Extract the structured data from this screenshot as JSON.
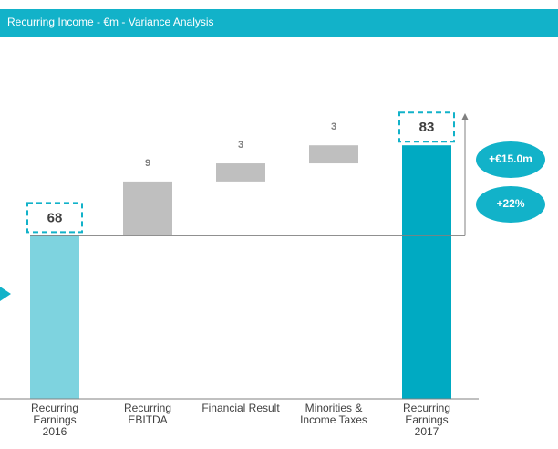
{
  "chart_data": {
    "type": "waterfall",
    "title": "Recurring Income - €m - Variance Analysis",
    "categories": [
      "Recurring\nEarnings\n2016",
      "Recurring\nEBITDA",
      "Financial Result",
      "Minorities &\nIncome Taxes",
      "Recurring\nEarnings\n2017"
    ],
    "values": [
      68,
      9,
      3,
      3,
      83
    ],
    "colors": [
      "#7ed3df",
      "#bfbfbf",
      "#bfbfbf",
      "#bfbfbf",
      "#00aac2"
    ],
    "ylim": [
      41,
      98
    ],
    "annotations": [
      "+€15.0m",
      "+22%"
    ]
  }
}
